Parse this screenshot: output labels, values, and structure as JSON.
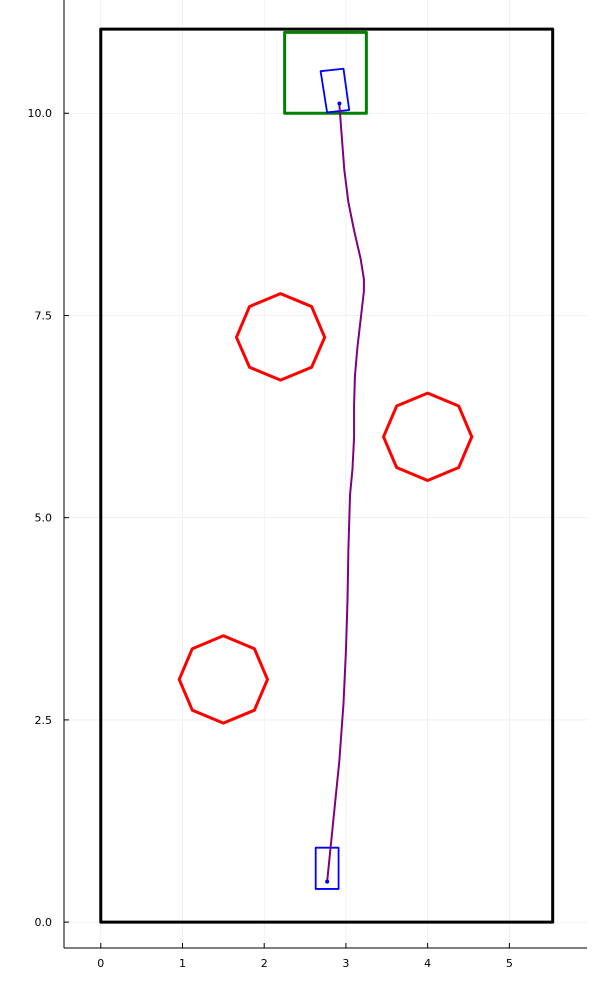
{
  "chart_data": {
    "type": "line",
    "title": "",
    "xlabel": "",
    "ylabel": "",
    "xlim": [
      -0.45,
      5.95
    ],
    "ylim": [
      -0.32,
      11.4
    ],
    "grid": true,
    "legend": "none",
    "x_ticks": [
      {
        "value": 0,
        "label": "0"
      },
      {
        "value": 1,
        "label": "1"
      },
      {
        "value": 2,
        "label": "2"
      },
      {
        "value": 3,
        "label": "3"
      },
      {
        "value": 4,
        "label": "4"
      },
      {
        "value": 5,
        "label": "5"
      }
    ],
    "y_ticks": [
      {
        "value": 0,
        "label": "0.0"
      },
      {
        "value": 2.5,
        "label": "2.5"
      },
      {
        "value": 5,
        "label": "5.0"
      },
      {
        "value": 7.5,
        "label": "7.5"
      },
      {
        "value": 10,
        "label": "10.0"
      }
    ],
    "series": [
      {
        "role": "boundary",
        "color": "#000000",
        "points": [
          [
            0,
            0
          ],
          [
            5.53,
            0
          ],
          [
            5.53,
            11.04
          ],
          [
            0,
            11.04
          ],
          [
            0,
            0
          ]
        ]
      },
      {
        "role": "goal-region",
        "color": "#008000",
        "points": [
          [
            2.25,
            10.0
          ],
          [
            3.25,
            10.0
          ],
          [
            3.25,
            11.0
          ],
          [
            2.25,
            11.0
          ],
          [
            2.25,
            10.0
          ]
        ]
      },
      {
        "role": "obstacle",
        "color": "#ff0000",
        "points": [
          [
            2.74,
            7.23
          ],
          [
            2.58,
            6.86
          ],
          [
            2.2,
            6.7
          ],
          [
            1.82,
            6.86
          ],
          [
            1.66,
            7.23
          ],
          [
            1.82,
            7.61
          ],
          [
            2.2,
            7.77
          ],
          [
            2.58,
            7.61
          ],
          [
            2.74,
            7.23
          ]
        ]
      },
      {
        "role": "obstacle",
        "color": "#ff0000",
        "points": [
          [
            4.54,
            6.0
          ],
          [
            4.38,
            5.62
          ],
          [
            4.0,
            5.46
          ],
          [
            3.62,
            5.62
          ],
          [
            3.46,
            6.0
          ],
          [
            3.62,
            6.38
          ],
          [
            4.0,
            6.54
          ],
          [
            4.38,
            6.38
          ],
          [
            4.54,
            6.0
          ]
        ]
      },
      {
        "role": "obstacle",
        "color": "#ff0000",
        "points": [
          [
            2.04,
            3.0
          ],
          [
            1.88,
            2.62
          ],
          [
            1.5,
            2.46
          ],
          [
            1.12,
            2.62
          ],
          [
            0.96,
            3.0
          ],
          [
            1.12,
            3.38
          ],
          [
            1.5,
            3.54
          ],
          [
            1.88,
            3.38
          ],
          [
            2.04,
            3.0
          ]
        ]
      },
      {
        "role": "vehicle-start",
        "color": "#0000ff",
        "points": [
          [
            2.63,
            0.41
          ],
          [
            2.91,
            0.41
          ],
          [
            2.91,
            0.92
          ],
          [
            2.63,
            0.92
          ],
          [
            2.63,
            0.41
          ]
        ]
      },
      {
        "role": "vehicle-end",
        "color": "#0000ff",
        "points": [
          [
            2.77,
            10.01
          ],
          [
            3.04,
            10.04
          ],
          [
            2.97,
            10.55
          ],
          [
            2.69,
            10.52
          ],
          [
            2.77,
            10.01
          ]
        ]
      },
      {
        "role": "trajectory",
        "color": "#800080",
        "points": [
          [
            2.77,
            0.5
          ],
          [
            2.84,
            1.2
          ],
          [
            2.92,
            2.0
          ],
          [
            2.97,
            2.7
          ],
          [
            3.0,
            3.35
          ],
          [
            3.02,
            4.0
          ],
          [
            3.03,
            4.6
          ],
          [
            3.05,
            5.28
          ],
          [
            3.08,
            5.6
          ],
          [
            3.1,
            6.0
          ],
          [
            3.1,
            6.4
          ],
          [
            3.11,
            6.75
          ],
          [
            3.14,
            7.1
          ],
          [
            3.18,
            7.45
          ],
          [
            3.22,
            7.8
          ],
          [
            3.22,
            7.95
          ],
          [
            3.18,
            8.2
          ],
          [
            3.1,
            8.55
          ],
          [
            3.03,
            8.9
          ],
          [
            2.98,
            9.3
          ],
          [
            2.95,
            9.7
          ],
          [
            2.92,
            10.1
          ]
        ]
      }
    ],
    "markers": [
      {
        "role": "start-point",
        "color": "#0000ff",
        "x": 2.77,
        "y": 0.5
      },
      {
        "role": "end-point",
        "color": "#0000ff",
        "x": 2.92,
        "y": 10.12
      }
    ]
  }
}
